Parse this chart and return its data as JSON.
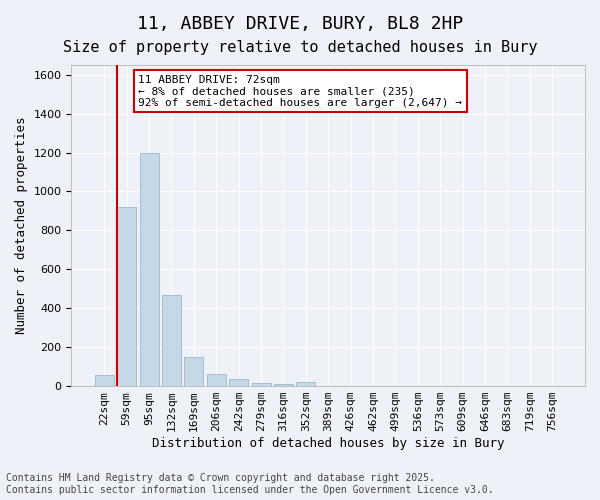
{
  "title_line1": "11, ABBEY DRIVE, BURY, BL8 2HP",
  "title_line2": "Size of property relative to detached houses in Bury",
  "xlabel": "Distribution of detached houses by size in Bury",
  "ylabel": "Number of detached properties",
  "categories": [
    "22sqm",
    "59sqm",
    "95sqm",
    "132sqm",
    "169sqm",
    "206sqm",
    "242sqm",
    "279sqm",
    "316sqm",
    "352sqm",
    "389sqm",
    "426sqm",
    "462sqm",
    "499sqm",
    "536sqm",
    "573sqm",
    "609sqm",
    "646sqm",
    "683sqm",
    "719sqm",
    "756sqm"
  ],
  "values": [
    55,
    920,
    1200,
    470,
    150,
    60,
    35,
    15,
    10,
    20,
    0,
    0,
    0,
    0,
    0,
    0,
    0,
    0,
    0,
    0,
    0
  ],
  "bar_color": "#c5d8e8",
  "bar_edge_color": "#8aafc7",
  "red_line_x": 1.0,
  "red_line_color": "#cc0000",
  "annotation_text": "11 ABBEY DRIVE: 72sqm\n← 8% of detached houses are smaller (235)\n92% of semi-detached houses are larger (2,647) →",
  "annotation_box_color": "#cc0000",
  "annotation_text_color": "#000000",
  "ylim": [
    0,
    1650
  ],
  "yticks": [
    0,
    200,
    400,
    600,
    800,
    1000,
    1200,
    1400,
    1600
  ],
  "background_color": "#eef2f8",
  "plot_background_color": "#eef2f8",
  "grid_color": "#ffffff",
  "footer_line1": "Contains HM Land Registry data © Crown copyright and database right 2025.",
  "footer_line2": "Contains public sector information licensed under the Open Government Licence v3.0.",
  "title_fontsize": 13,
  "subtitle_fontsize": 11,
  "axis_label_fontsize": 9,
  "tick_fontsize": 8,
  "annotation_fontsize": 8,
  "footer_fontsize": 7
}
